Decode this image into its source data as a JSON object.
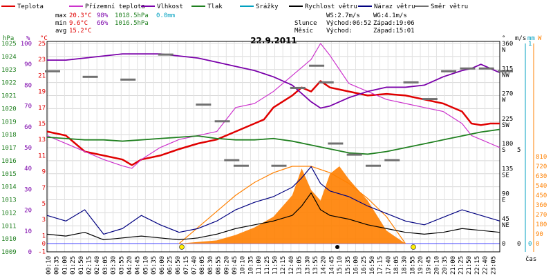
{
  "title": "22.9.2011",
  "legend": [
    {
      "label": "Teplota",
      "color": "#e00000"
    },
    {
      "label": "Přízemní teplota",
      "color": "#cc33cc"
    },
    {
      "label": "Vlhkost",
      "color": "#7a00aa"
    },
    {
      "label": "Tlak",
      "color": "#208020"
    },
    {
      "label": "Srážky",
      "color": "#00a0c0"
    },
    {
      "label": "Rychlost větru",
      "color": "#000000"
    },
    {
      "label": "Náraz větru",
      "color": "#000080"
    },
    {
      "label": "Směr větru",
      "color": "#707070"
    }
  ],
  "stats": {
    "max": {
      "label": "max",
      "temp": "20.3°C",
      "hum": "98%",
      "press": "1018.5hPa",
      "rain": "0.0mm"
    },
    "min": {
      "label": "min",
      "temp": "9.6°C",
      "hum": "66%",
      "press": "1016.5hPa"
    },
    "avg": {
      "label": "avg",
      "temp": "15.2°C"
    }
  },
  "wind_info": {
    "ws": "WS:2.7m/s",
    "wg": "WG:4.1m/s"
  },
  "sun": {
    "label": "Slunce",
    "rise": "Východ:06:52",
    "set": "Západ:19:06"
  },
  "moon": {
    "label": "Měsíc",
    "rise": "Východ:",
    "set": "Západ:15:01"
  },
  "time_label": "čas",
  "axis_units": {
    "hpa": "hPa",
    "pct": "%",
    "degc": "°C",
    "deg": "°",
    "ms": "m/s",
    "mm": "mm",
    "w": "W"
  },
  "chart_data": {
    "type": "line",
    "x_ticks": [
      "00:10",
      "00:35",
      "01:00",
      "01:25",
      "01:50",
      "02:15",
      "02:40",
      "03:05",
      "03:30",
      "03:55",
      "04:20",
      "04:45",
      "05:10",
      "05:35",
      "06:00",
      "06:25",
      "06:50",
      "07:15",
      "07:40",
      "08:05",
      "08:30",
      "08:55",
      "09:20",
      "09:45",
      "10:10",
      "10:35",
      "11:00",
      "11:25",
      "11:50",
      "12:15",
      "12:40",
      "13:05",
      "13:30",
      "13:55",
      "14:20",
      "14:45",
      "15:10",
      "15:35",
      "16:00",
      "16:25",
      "16:50",
      "17:15",
      "17:40",
      "18:05",
      "18:30",
      "18:55",
      "19:20",
      "19:45",
      "20:10",
      "20:35",
      "21:00",
      "21:25",
      "21:50",
      "22:15",
      "22:40",
      "23:05"
    ],
    "axes": {
      "pressure_hpa": {
        "ticks": [
          1009,
          1010,
          1011,
          1012,
          1013,
          1014,
          1015,
          1016,
          1017,
          1018,
          1019,
          1020,
          1021,
          1022,
          1023,
          1024,
          1025
        ]
      },
      "humidity_pct": {
        "ticks": [
          0,
          10,
          20,
          30,
          40,
          50,
          60,
          70,
          80,
          90,
          100
        ]
      },
      "temp_c": {
        "ticks": [
          -1,
          0,
          1,
          3,
          5,
          7,
          9,
          11,
          13,
          15,
          17,
          19,
          21,
          23,
          25
        ]
      },
      "wind_dir": {
        "ticks": [
          {
            "v": 0,
            "l": "0"
          },
          {
            "v": 45,
            "l": "45 NE"
          },
          {
            "v": 90,
            "l": "90 E"
          },
          {
            "v": 135,
            "l": "135 SE"
          },
          {
            "v": 180,
            "l": "180 S"
          },
          {
            "v": 225,
            "l": "225 SW"
          },
          {
            "v": 270,
            "l": "270 W"
          },
          {
            "v": 315,
            "l": "315 NW"
          },
          {
            "v": 360,
            "l": "360 N"
          }
        ]
      },
      "wind_ms": {
        "ticks": [
          0,
          5
        ]
      },
      "rain_mm": {
        "ticks": [
          0,
          1
        ]
      },
      "solar_w": {
        "ticks": [
          0,
          90,
          180,
          270,
          360,
          450,
          540,
          630,
          720,
          810
        ]
      }
    },
    "series": [
      {
        "name": "Teplota",
        "color": "#e00000",
        "x": [
          0,
          1,
          1.5,
          2,
          3,
          4,
          4.5,
          5,
          6,
          7,
          8,
          9,
          10,
          11,
          11.5,
          12,
          13,
          13.5,
          14,
          14.5,
          15,
          16,
          17,
          18,
          19,
          20,
          21,
          22,
          22.5,
          23,
          23.5,
          24
        ],
        "y": [
          14,
          13.5,
          12.5,
          11.5,
          11,
          10.5,
          9.8,
          10.5,
          11,
          11.8,
          12.5,
          13,
          14,
          15,
          15.5,
          17,
          18.5,
          19.5,
          19,
          20.3,
          19.5,
          19,
          18.5,
          18.7,
          18.5,
          18,
          17.5,
          16.5,
          15,
          14.8,
          15,
          15
        ]
      },
      {
        "name": "Přízemní teplota",
        "color": "#cc33cc",
        "x": [
          0,
          2,
          3,
          4,
          4.5,
          5,
          6,
          7,
          8,
          9,
          9.5,
          10,
          11,
          12,
          13,
          14,
          14.5,
          15,
          16,
          17,
          18,
          19,
          20,
          21,
          22,
          22.5,
          23,
          23.5,
          24
        ],
        "y": [
          13.5,
          11.5,
          10.5,
          9.7,
          9.4,
          10.5,
          12,
          13,
          13.5,
          14,
          15.5,
          17,
          17.5,
          19,
          21,
          23,
          25,
          23.5,
          20,
          19,
          18,
          17.5,
          17,
          16.5,
          15,
          13.5,
          13,
          12.5,
          12
        ]
      },
      {
        "name": "Vlhkost",
        "color": "#7a00aa",
        "x": [
          0,
          1,
          2,
          3,
          4,
          5,
          6,
          7,
          8,
          9,
          10,
          11,
          12,
          13,
          14,
          14.5,
          15,
          16,
          17,
          18,
          19,
          20,
          21,
          22,
          22.5,
          23,
          23.5,
          24
        ],
        "y": [
          92,
          92,
          93,
          94,
          95,
          95,
          95,
          94,
          93,
          91,
          89,
          87,
          84,
          80,
          72,
          69,
          70,
          74,
          77,
          79,
          79,
          80,
          84,
          87,
          88,
          90,
          88,
          86
        ]
      },
      {
        "name": "Tlak",
        "color": "#208020",
        "x": [
          0,
          1,
          2,
          3,
          4,
          5,
          6,
          7,
          8,
          9,
          10,
          11,
          12,
          13,
          14,
          15,
          16,
          17,
          18,
          19,
          20,
          21,
          22,
          23,
          24
        ],
        "y": [
          1017.8,
          1017.7,
          1017.6,
          1017.6,
          1017.5,
          1017.6,
          1017.7,
          1017.8,
          1017.9,
          1017.7,
          1017.6,
          1017.6,
          1017.7,
          1017.5,
          1017.2,
          1016.9,
          1016.6,
          1016.5,
          1016.7,
          1017.0,
          1017.3,
          1017.6,
          1017.9,
          1018.2,
          1018.4
        ]
      },
      {
        "name": "Rychlost větru",
        "color": "#000000",
        "x": [
          0,
          1,
          2,
          3,
          4,
          5,
          6,
          7,
          8,
          9,
          10,
          11,
          12,
          13,
          13.5,
          14,
          14.5,
          15,
          16,
          17,
          18,
          19,
          20,
          21,
          22,
          23,
          24
        ],
        "y": [
          0.5,
          0.4,
          0.6,
          0.2,
          0.3,
          0.4,
          0.3,
          0.2,
          0.3,
          0.5,
          0.8,
          1.0,
          1.2,
          1.5,
          2.0,
          2.7,
          1.8,
          1.5,
          1.3,
          1.0,
          0.8,
          0.6,
          0.5,
          0.6,
          0.8,
          0.7,
          0.6
        ]
      },
      {
        "name": "Náraz větru",
        "color": "#000080",
        "x": [
          0,
          1,
          2,
          3,
          4,
          5,
          6,
          7,
          8,
          9,
          10,
          11,
          12,
          13,
          13.5,
          14,
          14.5,
          15,
          16,
          17,
          18,
          19,
          20,
          21,
          22,
          23,
          24
        ],
        "y": [
          1.5,
          1.2,
          1.8,
          0.5,
          0.8,
          1.5,
          1.0,
          0.6,
          0.8,
          1.2,
          1.8,
          2.2,
          2.5,
          3.0,
          3.5,
          4.1,
          3.2,
          2.8,
          2.5,
          2.0,
          1.6,
          1.2,
          1.0,
          1.4,
          1.8,
          1.5,
          1.2
        ]
      },
      {
        "name": "Směr větru",
        "color": "#707070",
        "x": [
          0,
          2,
          4,
          6,
          8,
          9,
          9.5,
          10,
          12,
          13,
          14,
          14.5,
          15,
          16,
          17,
          18,
          19,
          20,
          21,
          22,
          23,
          24
        ],
        "y": [
          310,
          300,
          295,
          340,
          250,
          220,
          150,
          140,
          140,
          280,
          320,
          290,
          180,
          160,
          140,
          150,
          290,
          260,
          310,
          315,
          315,
          310
        ]
      }
    ],
    "solar_radiation": {
      "name": "Solar",
      "color": "#ff8000",
      "x": [
        7,
        9,
        10,
        11,
        12,
        13,
        13.5,
        14,
        14.5,
        15,
        15.5,
        16,
        17,
        18,
        19
      ],
      "y": [
        0,
        30,
        80,
        150,
        250,
        450,
        700,
        500,
        400,
        650,
        720,
        600,
        400,
        120,
        0
      ]
    },
    "solar_theoretical": {
      "x": [
        7,
        8,
        9,
        10,
        11,
        12,
        13,
        14,
        15,
        16,
        17,
        18,
        19
      ],
      "y": [
        0,
        150,
        300,
        450,
        570,
        660,
        720,
        720,
        660,
        560,
        420,
        250,
        0
      ]
    }
  }
}
